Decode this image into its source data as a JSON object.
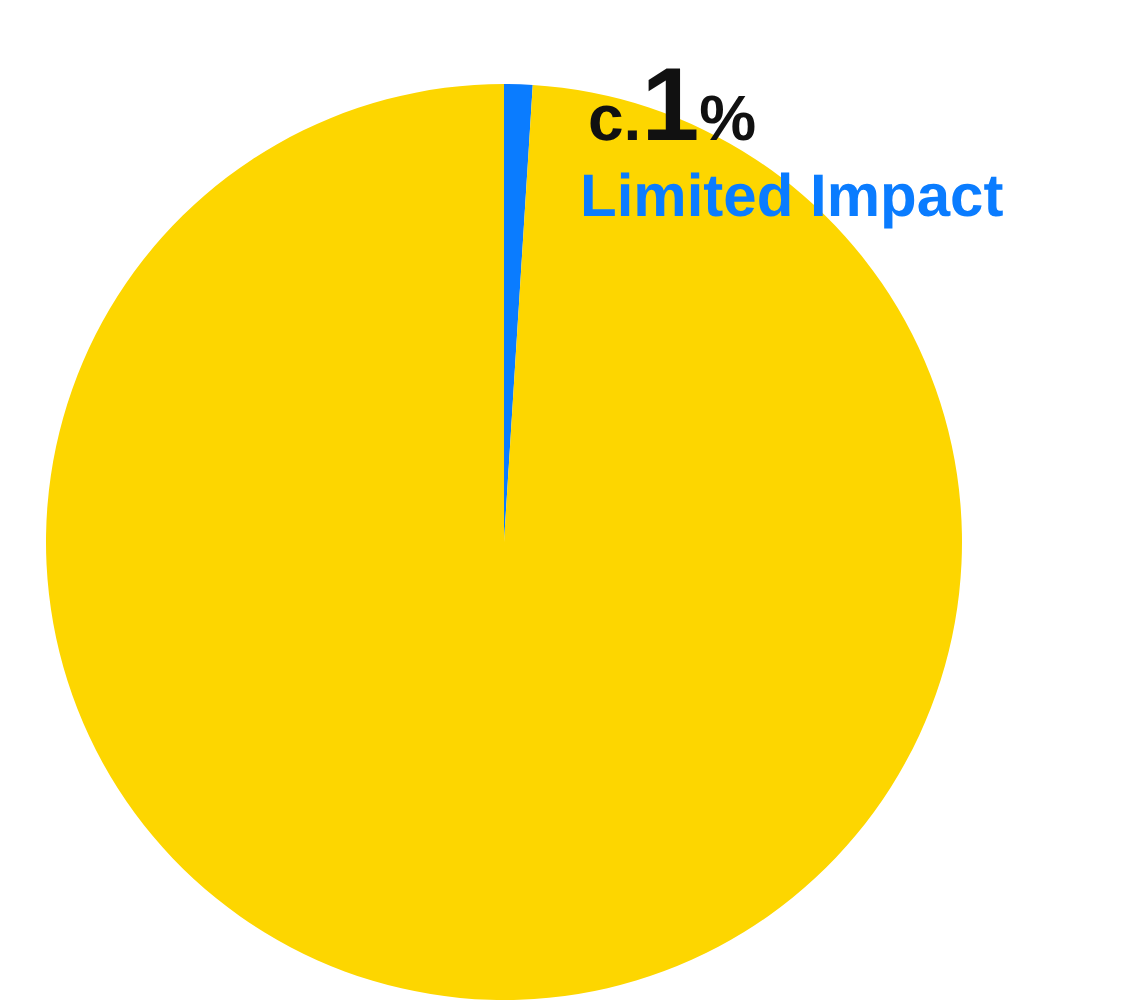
{
  "chart_data": {
    "type": "pie",
    "categories": [
      "Limited Impact",
      null
    ],
    "values": [
      1,
      99
    ],
    "colors": [
      "#0a7cff",
      "#fdd600"
    ],
    "value_labels": [
      "c.1%",
      null
    ]
  }
}
